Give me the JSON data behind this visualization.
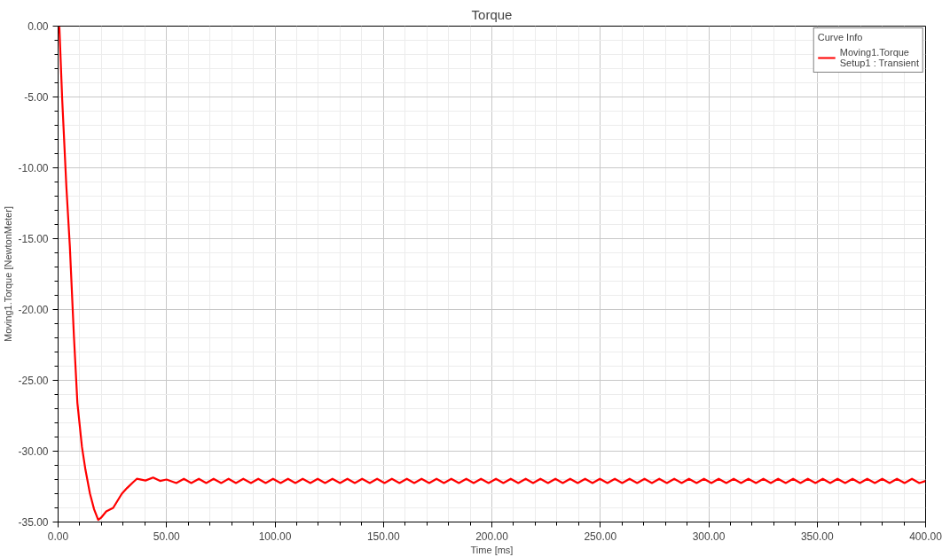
{
  "chart_data": {
    "type": "line",
    "title": "Torque",
    "xlabel": "Time [ms]",
    "ylabel": "Moving1.Torque [NewtonMeter]",
    "legend_title": "Curve Info",
    "xlim": [
      0,
      400
    ],
    "ylim": [
      -35,
      0
    ],
    "xticks": [
      {
        "value": 0,
        "label": "0.00"
      },
      {
        "value": 50,
        "label": "50.00"
      },
      {
        "value": 100,
        "label": "100.00"
      },
      {
        "value": 150,
        "label": "150.00"
      },
      {
        "value": 200,
        "label": "200.00"
      },
      {
        "value": 250,
        "label": "250.00"
      },
      {
        "value": 300,
        "label": "300.00"
      },
      {
        "value": 350,
        "label": "350.00"
      },
      {
        "value": 400,
        "label": "400.00"
      }
    ],
    "yticks": [
      {
        "value": 0,
        "label": "0.00"
      },
      {
        "value": -5,
        "label": "-5.00"
      },
      {
        "value": -10,
        "label": "-10.00"
      },
      {
        "value": -15,
        "label": "-15.00"
      },
      {
        "value": -20,
        "label": "-20.00"
      },
      {
        "value": -25,
        "label": "-25.00"
      },
      {
        "value": -30,
        "label": "-30.00"
      },
      {
        "value": -35,
        "label": "-35.00"
      }
    ],
    "grid": true,
    "legend": "top right",
    "marker": "none",
    "line_style": "solid",
    "series": [
      {
        "name": "Moving1.Torque\nSetup1 : Transient",
        "color": "#ff0000",
        "x": [
          0,
          0.6,
          1.9,
          3.8,
          5.4,
          7.3,
          8.9,
          11.0,
          12.6,
          14.7,
          16.6,
          18.5,
          19.8,
          22.2,
          25.4,
          29.4,
          31.8,
          34.5,
          36.3,
          40.3,
          43.8,
          47.0,
          50.0,
          54.5,
          58.0,
          61.4,
          64.9,
          68.3,
          71.7,
          75.2,
          78.6,
          82.0,
          85.4,
          88.9,
          92.3,
          95.7,
          99.1,
          102.6,
          106.0,
          109.4,
          112.8,
          116.3,
          119.7,
          123.1,
          126.5,
          130.0,
          133.4,
          136.8,
          140.2,
          143.7,
          147.1,
          150.5,
          153.9,
          157.4,
          160.8,
          164.2,
          167.6,
          171.1,
          174.5,
          177.9,
          181.3,
          184.8,
          188.2,
          191.6,
          195.0,
          198.5,
          201.9,
          205.3,
          208.7,
          212.2,
          215.6,
          219.0,
          222.4,
          225.9,
          229.3,
          232.7,
          236.1,
          239.6,
          243.0,
          246.4,
          249.8,
          253.3,
          256.7,
          260.1,
          263.5,
          267.0,
          270.4,
          273.8,
          277.2,
          280.7,
          284.1,
          287.5,
          290.9,
          294.4,
          297.8,
          301.2,
          304.6,
          308.1,
          311.5,
          314.9,
          318.3,
          321.8,
          325.2,
          328.6,
          332.0,
          335.5,
          338.9,
          342.3,
          345.7,
          349.2,
          352.6,
          356.0,
          359.4,
          362.9,
          366.3,
          369.7,
          373.1,
          376.6,
          380.0,
          383.4,
          386.8,
          390.3,
          393.7,
          397.1,
          400.0
        ],
        "values": [
          -0.5,
          -0.1,
          -5.2,
          -11.3,
          -15.5,
          -21.9,
          -26.6,
          -29.7,
          -31.3,
          -33.0,
          -34.1,
          -34.85,
          -34.7,
          -34.25,
          -34.0,
          -33.0,
          -32.6,
          -32.2,
          -31.95,
          -32.07,
          -31.86,
          -32.1,
          -32.0,
          -32.25,
          -31.95,
          -32.25,
          -31.95,
          -32.25,
          -31.95,
          -32.25,
          -31.95,
          -32.25,
          -31.95,
          -32.25,
          -31.95,
          -32.25,
          -31.95,
          -32.25,
          -31.95,
          -32.25,
          -31.95,
          -32.25,
          -31.95,
          -32.25,
          -31.95,
          -32.25,
          -31.95,
          -32.25,
          -31.95,
          -32.25,
          -31.95,
          -32.25,
          -31.95,
          -32.25,
          -31.95,
          -32.25,
          -31.95,
          -32.25,
          -31.95,
          -32.25,
          -31.95,
          -32.25,
          -31.95,
          -32.25,
          -31.95,
          -32.25,
          -31.95,
          -32.25,
          -31.95,
          -32.25,
          -31.95,
          -32.25,
          -31.95,
          -32.25,
          -31.95,
          -32.25,
          -31.95,
          -32.25,
          -31.95,
          -32.25,
          -31.95,
          -32.25,
          -31.95,
          -32.25,
          -31.95,
          -32.25,
          -31.95,
          -32.25,
          -31.95,
          -32.25,
          -31.95,
          -32.25,
          -31.95,
          -32.25,
          -31.95,
          -32.25,
          -31.95,
          -32.25,
          -31.95,
          -32.25,
          -31.95,
          -32.25,
          -31.95,
          -32.25,
          -31.95,
          -32.25,
          -31.95,
          -32.25,
          -31.95,
          -32.25,
          -31.95,
          -32.25,
          -31.95,
          -32.25,
          -31.95,
          -32.25,
          -31.95,
          -32.25,
          -31.95,
          -32.25,
          -31.95,
          -32.25,
          -31.95,
          -32.25,
          -32.1
        ]
      }
    ]
  }
}
